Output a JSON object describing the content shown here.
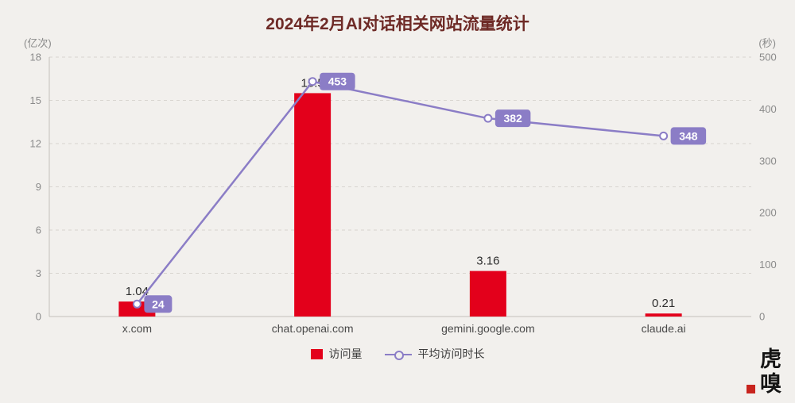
{
  "title": "2024年2月AI对话相关网站流量统计",
  "axes": {
    "left_unit": "(亿次)",
    "right_unit": "(秒)"
  },
  "legend": {
    "bar_label": "访问量",
    "line_label": "平均访问时长"
  },
  "watermark": {
    "text": "虎嗅"
  },
  "colors": {
    "background": "#f2f0ed",
    "bar": "#e3001b",
    "line": "#8b7dc6",
    "badge_bg": "#8b7dc6",
    "badge_text": "#ffffff",
    "title": "#6e2a26",
    "axis_text": "#8a8a8a",
    "category_text": "#4a4a4a",
    "grid": "#d8d5d0"
  },
  "chart_data": {
    "type": "bar+line",
    "title": "2024年2月AI对话相关网站流量统计",
    "categories": [
      "x.com",
      "chat.openai.com",
      "gemini.google.com",
      "claude.ai"
    ],
    "series": [
      {
        "name": "访问量",
        "type": "bar",
        "axis": "left",
        "values": [
          1.04,
          15.5,
          3.16,
          0.21
        ],
        "labels": [
          "1.04",
          "15.5",
          "3.16",
          "0.21"
        ]
      },
      {
        "name": "平均访问时长",
        "type": "line",
        "axis": "right",
        "values": [
          24,
          453,
          382,
          348
        ],
        "labels": [
          "24",
          "453",
          "382",
          "348"
        ]
      }
    ],
    "left_axis": {
      "label": "(亿次)",
      "min": 0,
      "max": 18,
      "ticks": [
        0,
        3,
        6,
        9,
        12,
        15,
        18
      ]
    },
    "right_axis": {
      "label": "(秒)",
      "min": 0,
      "max": 500,
      "ticks": [
        0,
        100,
        200,
        300,
        400,
        500
      ]
    },
    "grid": "dashed-horizontal",
    "legend_position": "bottom-center"
  }
}
